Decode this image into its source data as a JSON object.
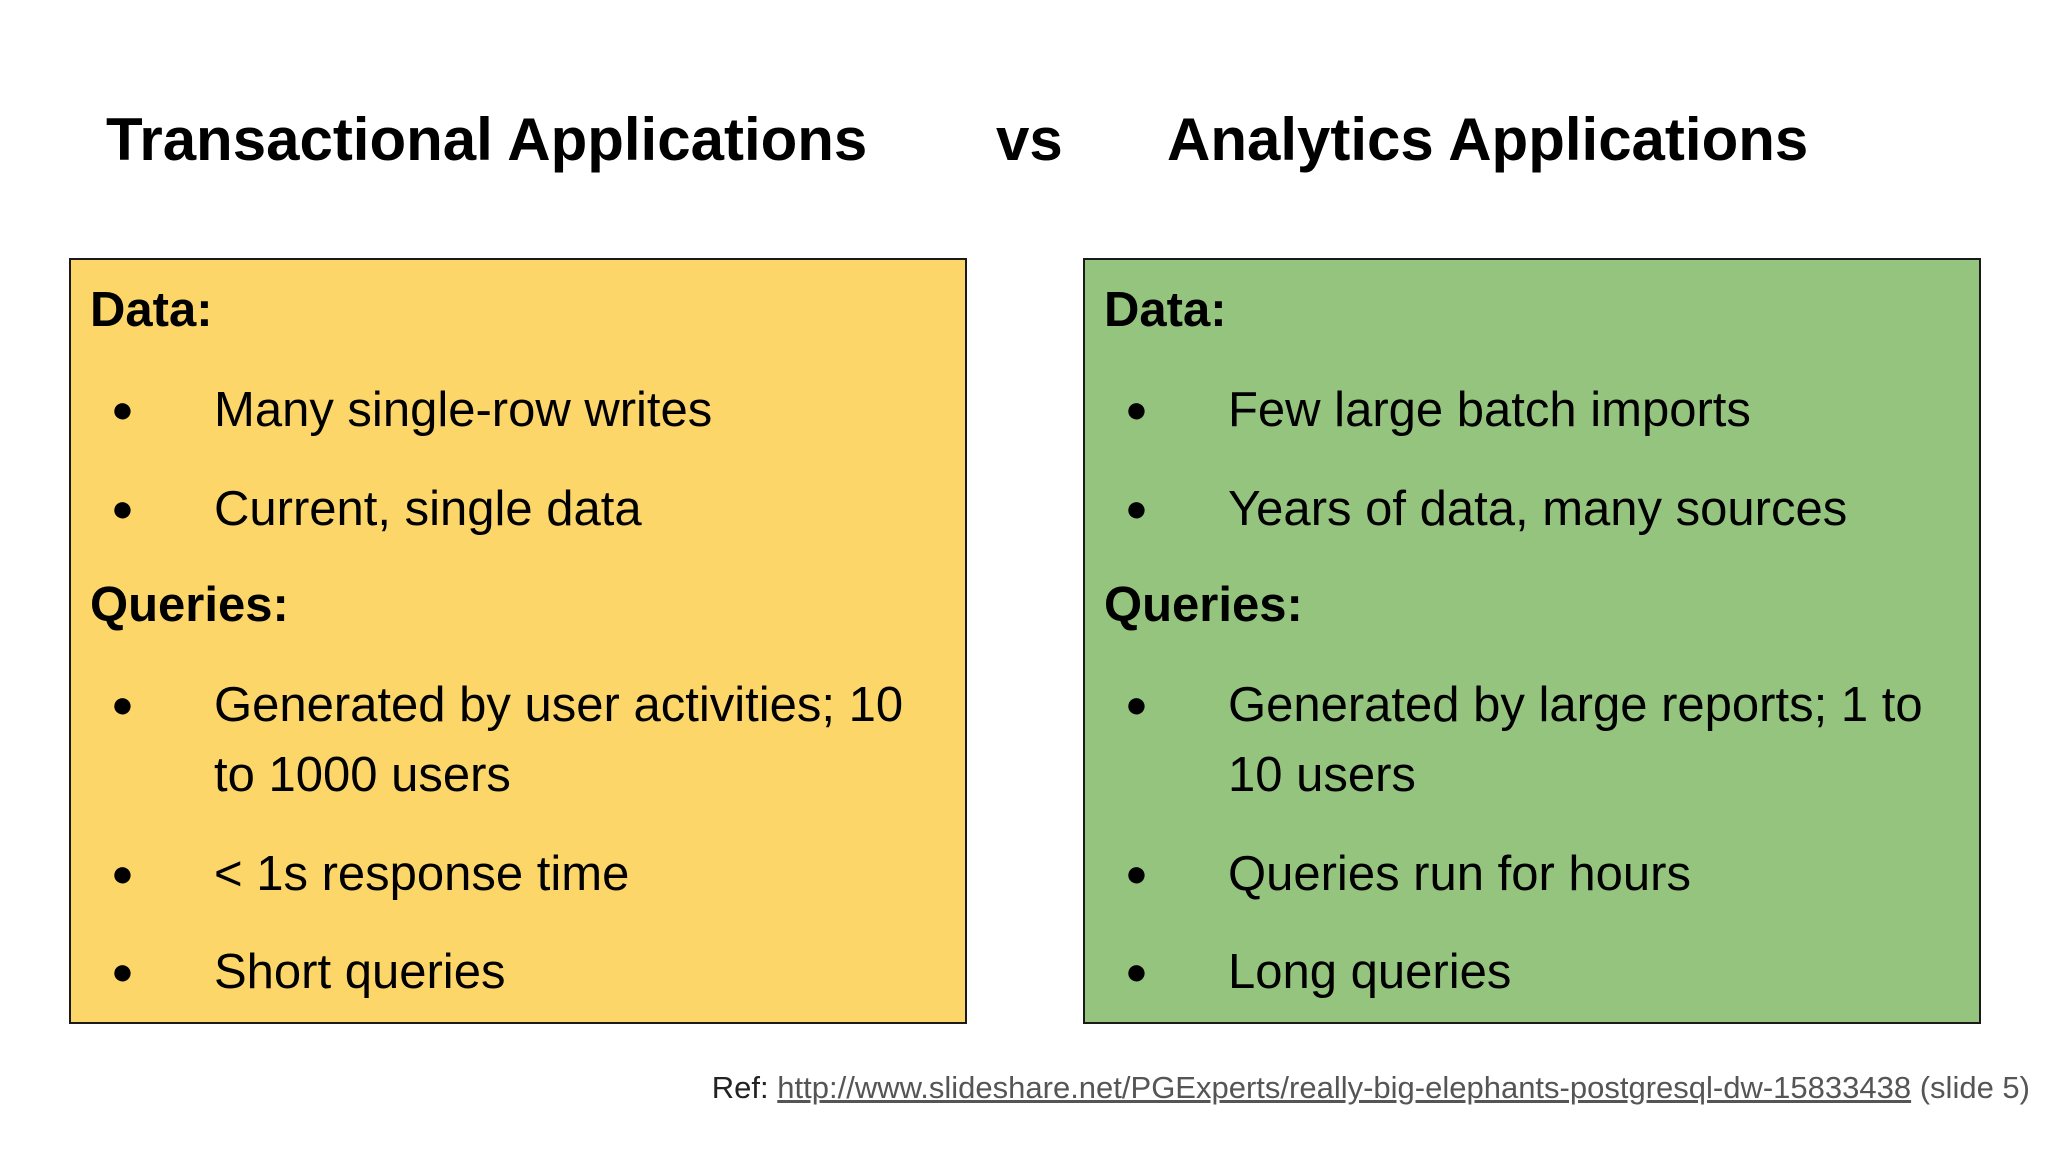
{
  "title": {
    "left": "Transactional Applications",
    "vs": "vs",
    "right": "Analytics Applications"
  },
  "left_panel": {
    "background": "#FCD669",
    "data_heading": "Data:",
    "data_items": [
      "Many single-row writes",
      "Current, single data"
    ],
    "queries_heading": "Queries:",
    "query_items": [
      "Generated by user activities; 10 to 1000 users",
      "< 1s response time",
      "Short queries"
    ]
  },
  "right_panel": {
    "background": "#95C47E",
    "data_heading": "Data:",
    "data_items": [
      "Few large batch imports",
      "Years of data, many sources"
    ],
    "queries_heading": "Queries:",
    "query_items": [
      "Generated by large reports; 1 to 10 users",
      "Queries run for hours",
      "Long queries"
    ]
  },
  "bullet_glyph": "●",
  "footer": {
    "prefix": "Ref:",
    "link_text": "http://www.slideshare.net/PGExperts/really-big-elephants-postgresql-dw-15833438",
    "suffix": "(slide 5)"
  }
}
